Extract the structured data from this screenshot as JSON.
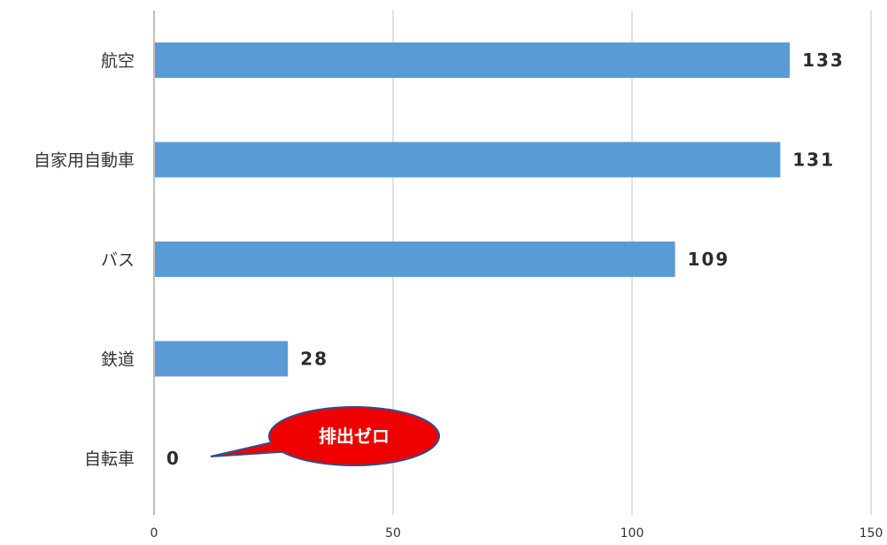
{
  "chart_data": {
    "type": "bar",
    "orientation": "horizontal",
    "categories": [
      "航空",
      "自家用自動車",
      "バス",
      "鉄道",
      "自転車"
    ],
    "values": [
      133,
      131,
      109,
      28,
      0
    ],
    "value_labels": [
      "133",
      "131",
      "109",
      "28",
      "0"
    ],
    "xlim": [
      0,
      150
    ],
    "x_ticks": [
      0,
      50,
      100,
      150
    ],
    "x_tick_labels": [
      "0",
      "50",
      "100",
      "150"
    ],
    "grid": "vertical",
    "title": "",
    "xlabel": "",
    "ylabel": "",
    "bar_color": "#5b9bd5",
    "annotation": {
      "text": "排出ゼロ",
      "category": "自転車",
      "fill_color": "#ee0000",
      "border_color": "#2f4f8f"
    }
  }
}
